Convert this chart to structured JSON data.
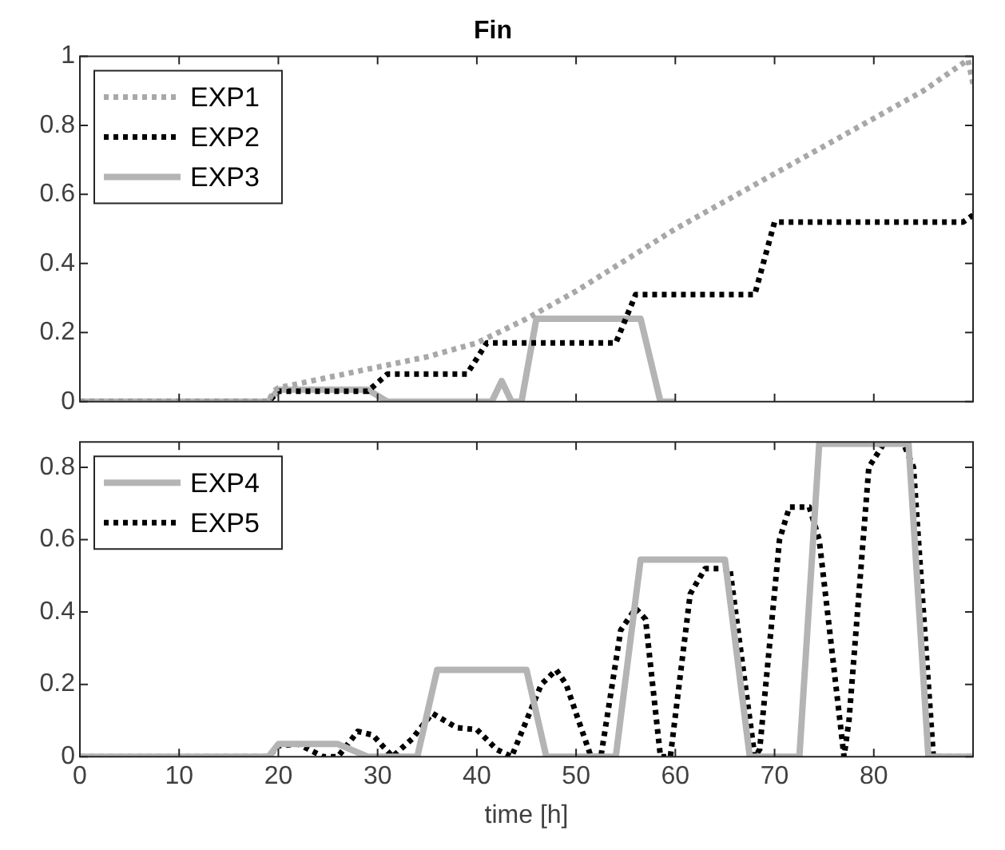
{
  "chart_data": [
    {
      "type": "line",
      "title": "Fin",
      "xlim": [
        0,
        90
      ],
      "xticks": [
        0,
        10,
        20,
        30,
        40,
        50,
        60,
        70,
        80
      ],
      "ylim": [
        0,
        1
      ],
      "yticks": [
        0,
        0.2,
        0.4,
        0.6,
        0.8,
        1
      ],
      "tick_labels": "y",
      "grid": false,
      "legend": "top left",
      "marker": "none",
      "series": [
        {
          "name": "EXP1",
          "color": "#a8a8a8",
          "line_style": "dotted",
          "x": [
            0,
            19,
            19.5,
            20,
            25,
            30,
            35,
            40,
            45,
            50,
            55,
            60,
            65,
            70,
            75,
            80,
            85,
            89.5,
            90
          ],
          "values": [
            0,
            0,
            0.03,
            0.04,
            0.07,
            0.1,
            0.13,
            0.17,
            0.24,
            0.32,
            0.41,
            0.5,
            0.58,
            0.66,
            0.74,
            0.82,
            0.9,
            0.99,
            0.92
          ]
        },
        {
          "name": "EXP2",
          "color": "#000000",
          "line_style": "dotted",
          "x": [
            0,
            19,
            20,
            29,
            31,
            39,
            41,
            54,
            56,
            68,
            70,
            89,
            90
          ],
          "values": [
            0,
            0,
            0.03,
            0.03,
            0.08,
            0.08,
            0.17,
            0.17,
            0.31,
            0.31,
            0.52,
            0.52,
            0.54
          ]
        },
        {
          "name": "EXP3",
          "color": "#b4b4b4",
          "line_style": "solid",
          "x": [
            0,
            19,
            20,
            29,
            31,
            41.5,
            42.5,
            43.5,
            44.5,
            46,
            56.5,
            58.5,
            60
          ],
          "values": [
            0,
            0,
            0.035,
            0.035,
            0,
            0,
            0.06,
            0,
            0,
            0.24,
            0.24,
            0,
            0
          ]
        }
      ]
    },
    {
      "type": "line",
      "xlabel": "time [h]",
      "xlim": [
        0,
        90
      ],
      "xticks": [
        0,
        10,
        20,
        30,
        40,
        50,
        60,
        70,
        80
      ],
      "ylim": [
        0,
        0.87
      ],
      "yticks": [
        0,
        0.2,
        0.4,
        0.6,
        0.8
      ],
      "grid": false,
      "legend": "top left",
      "marker": "none",
      "series": [
        {
          "name": "EXP4",
          "color": "#b4b4b4",
          "line_style": "solid",
          "x": [
            0,
            19,
            20,
            26,
            29,
            34,
            36,
            45,
            47,
            54,
            56.5,
            65,
            67.5,
            72.5,
            74.5,
            83.5,
            85.5,
            90
          ],
          "values": [
            0,
            0,
            0.035,
            0.035,
            0,
            0,
            0.24,
            0.24,
            0,
            0,
            0.545,
            0.545,
            0,
            0,
            0.865,
            0.865,
            0,
            0
          ]
        },
        {
          "name": "EXP5",
          "color": "#000000",
          "line_style": "dotted",
          "x": [
            0,
            19,
            20,
            22,
            24.5,
            26,
            28,
            29.5,
            31.5,
            33.5,
            35.5,
            38,
            40,
            42,
            43.5,
            46.5,
            48,
            49,
            51.5,
            52.5,
            54.5,
            56,
            57,
            58.5,
            59.5,
            61.5,
            63,
            65.5,
            68,
            68.5,
            70.5,
            71.5,
            73.5,
            74.5,
            77,
            77.5,
            79.5,
            81,
            83,
            84,
            86,
            90
          ],
          "values": [
            0,
            0,
            0.03,
            0.035,
            0,
            0,
            0.07,
            0.06,
            0,
            0.05,
            0.12,
            0.08,
            0.075,
            0.02,
            0,
            0.2,
            0.24,
            0.2,
            0,
            0,
            0.35,
            0.41,
            0.38,
            0,
            0,
            0.45,
            0.52,
            0.52,
            0,
            0.02,
            0.6,
            0.69,
            0.69,
            0.6,
            0,
            0.1,
            0.8,
            0.865,
            0.865,
            0.8,
            0,
            0
          ]
        }
      ]
    }
  ]
}
